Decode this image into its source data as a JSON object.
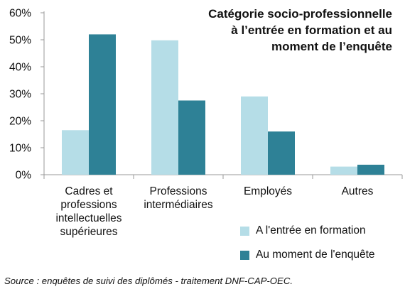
{
  "chart_data": {
    "type": "bar",
    "title": "Catégorie socio-professionnelle\nà l’entrée en formation et au\nmoment de l’enquête",
    "categories": [
      "Cadres et\nprofessions\nintellectuelles\nsupérieures",
      "Professions\nintermédiaires",
      "Employés",
      "Autres"
    ],
    "series": [
      {
        "name": "A l'entrée en formation",
        "values": [
          16.5,
          49.8,
          29,
          3
        ],
        "color": "#b5dde7"
      },
      {
        "name": "Au moment de l'enquête",
        "values": [
          52,
          27.5,
          16,
          3.7
        ],
        "color": "#2e8196"
      }
    ],
    "ylim": [
      0,
      60
    ],
    "yticks": [
      "0%",
      "10%",
      "20%",
      "30%",
      "40%",
      "50%",
      "60%"
    ],
    "grid": false,
    "legend_position": "bottom-right",
    "axis_color": "#999999",
    "xlabel": "",
    "ylabel": ""
  },
  "source": "Source : enquêtes de suivi des diplômés - traitement DNF-CAP-OEC."
}
